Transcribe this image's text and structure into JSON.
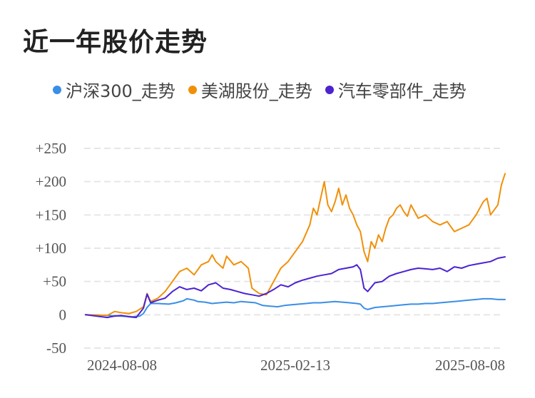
{
  "title": "近一年股价走势",
  "chart_data": {
    "type": "line",
    "title": "近一年股价走势",
    "xlabel": "",
    "ylabel": "",
    "x_tick_labels": [
      "2024-08-08",
      "2025-02-13",
      "2025-08-08"
    ],
    "y_ticks": [
      {
        "value": 250,
        "label": "+250"
      },
      {
        "value": 200,
        "label": "+200"
      },
      {
        "value": 150,
        "label": "+150"
      },
      {
        "value": 100,
        "label": "+100"
      },
      {
        "value": 50,
        "label": "+50"
      },
      {
        "value": 0,
        "label": "0"
      },
      {
        "value": -50,
        "label": "-50"
      }
    ],
    "ylim": [
      -50,
      250
    ],
    "grid": true,
    "legend_position": "top",
    "series": [
      {
        "name": "沪深300_走势",
        "color": "#3a8ee6",
        "points": [
          [
            0,
            0
          ],
          [
            6,
            -1
          ],
          [
            10,
            -2
          ],
          [
            13,
            -3
          ],
          [
            15,
            -2
          ],
          [
            16,
            2
          ],
          [
            17,
            11
          ],
          [
            18,
            17
          ],
          [
            20,
            17
          ],
          [
            23,
            16
          ],
          [
            25,
            18
          ],
          [
            27,
            21
          ],
          [
            28,
            24
          ],
          [
            30,
            22
          ],
          [
            31,
            20
          ],
          [
            33,
            19
          ],
          [
            35,
            17
          ],
          [
            37,
            18
          ],
          [
            39,
            19
          ],
          [
            41,
            18
          ],
          [
            43,
            20
          ],
          [
            45,
            19
          ],
          [
            47,
            18
          ],
          [
            49,
            14
          ],
          [
            51,
            13
          ],
          [
            53,
            12
          ],
          [
            55,
            14
          ],
          [
            57,
            15
          ],
          [
            59,
            16
          ],
          [
            61,
            17
          ],
          [
            63,
            18
          ],
          [
            65,
            18
          ],
          [
            67,
            19
          ],
          [
            69,
            20
          ],
          [
            71,
            19
          ],
          [
            73,
            18
          ],
          [
            75,
            17
          ],
          [
            76,
            16
          ],
          [
            77,
            10
          ],
          [
            78,
            8
          ],
          [
            80,
            11
          ],
          [
            82,
            12
          ],
          [
            84,
            13
          ],
          [
            86,
            14
          ],
          [
            88,
            15
          ],
          [
            90,
            16
          ],
          [
            92,
            16
          ],
          [
            94,
            17
          ],
          [
            96,
            17
          ],
          [
            98,
            18
          ],
          [
            100,
            19
          ],
          [
            102,
            20
          ],
          [
            104,
            21
          ],
          [
            106,
            22
          ],
          [
            108,
            23
          ],
          [
            110,
            24
          ],
          [
            112,
            24
          ],
          [
            114,
            23
          ],
          [
            116,
            23
          ]
        ]
      },
      {
        "name": "美湖股份_走势",
        "color": "#f0900a",
        "points": [
          [
            0,
            0
          ],
          [
            6,
            -1
          ],
          [
            7,
            2
          ],
          [
            8,
            5
          ],
          [
            10,
            3
          ],
          [
            12,
            2
          ],
          [
            14,
            5
          ],
          [
            16,
            12
          ],
          [
            17,
            32
          ],
          [
            18,
            20
          ],
          [
            20,
            25
          ],
          [
            22,
            35
          ],
          [
            24,
            50
          ],
          [
            26,
            65
          ],
          [
            28,
            70
          ],
          [
            30,
            60
          ],
          [
            32,
            75
          ],
          [
            34,
            80
          ],
          [
            35,
            90
          ],
          [
            36,
            80
          ],
          [
            38,
            70
          ],
          [
            39,
            88
          ],
          [
            41,
            75
          ],
          [
            43,
            80
          ],
          [
            45,
            70
          ],
          [
            46,
            40
          ],
          [
            48,
            32
          ],
          [
            50,
            30
          ],
          [
            52,
            50
          ],
          [
            54,
            70
          ],
          [
            56,
            80
          ],
          [
            58,
            95
          ],
          [
            60,
            110
          ],
          [
            62,
            135
          ],
          [
            63,
            160
          ],
          [
            64,
            150
          ],
          [
            65,
            175
          ],
          [
            66,
            200
          ],
          [
            67,
            165
          ],
          [
            68,
            155
          ],
          [
            69,
            170
          ],
          [
            70,
            190
          ],
          [
            71,
            165
          ],
          [
            72,
            180
          ],
          [
            73,
            160
          ],
          [
            74,
            150
          ],
          [
            75,
            135
          ],
          [
            76,
            125
          ],
          [
            77,
            95
          ],
          [
            78,
            80
          ],
          [
            79,
            110
          ],
          [
            80,
            100
          ],
          [
            81,
            120
          ],
          [
            82,
            110
          ],
          [
            83,
            130
          ],
          [
            84,
            145
          ],
          [
            85,
            150
          ],
          [
            86,
            160
          ],
          [
            87,
            165
          ],
          [
            88,
            155
          ],
          [
            89,
            148
          ],
          [
            90,
            165
          ],
          [
            92,
            145
          ],
          [
            94,
            150
          ],
          [
            96,
            140
          ],
          [
            98,
            135
          ],
          [
            100,
            140
          ],
          [
            102,
            125
          ],
          [
            104,
            130
          ],
          [
            106,
            135
          ],
          [
            108,
            150
          ],
          [
            110,
            170
          ],
          [
            111,
            175
          ],
          [
            112,
            150
          ],
          [
            114,
            165
          ],
          [
            115,
            195
          ],
          [
            116,
            212
          ]
        ]
      },
      {
        "name": "汽车零部件_走势",
        "color": "#4b23d1",
        "points": [
          [
            0,
            0
          ],
          [
            6,
            -4
          ],
          [
            8,
            -2
          ],
          [
            10,
            -1
          ],
          [
            12,
            -3
          ],
          [
            14,
            -4
          ],
          [
            16,
            10
          ],
          [
            17,
            31
          ],
          [
            18,
            18
          ],
          [
            20,
            22
          ],
          [
            22,
            25
          ],
          [
            24,
            35
          ],
          [
            26,
            42
          ],
          [
            28,
            38
          ],
          [
            30,
            40
          ],
          [
            32,
            36
          ],
          [
            34,
            45
          ],
          [
            36,
            48
          ],
          [
            38,
            40
          ],
          [
            40,
            38
          ],
          [
            42,
            35
          ],
          [
            44,
            32
          ],
          [
            46,
            30
          ],
          [
            48,
            28
          ],
          [
            50,
            32
          ],
          [
            52,
            38
          ],
          [
            54,
            45
          ],
          [
            56,
            42
          ],
          [
            58,
            48
          ],
          [
            60,
            52
          ],
          [
            62,
            55
          ],
          [
            64,
            58
          ],
          [
            66,
            60
          ],
          [
            68,
            62
          ],
          [
            70,
            68
          ],
          [
            72,
            70
          ],
          [
            74,
            72
          ],
          [
            75,
            75
          ],
          [
            76,
            68
          ],
          [
            77,
            40
          ],
          [
            78,
            35
          ],
          [
            80,
            48
          ],
          [
            82,
            50
          ],
          [
            84,
            58
          ],
          [
            86,
            62
          ],
          [
            88,
            65
          ],
          [
            90,
            68
          ],
          [
            92,
            70
          ],
          [
            94,
            69
          ],
          [
            96,
            68
          ],
          [
            98,
            70
          ],
          [
            100,
            65
          ],
          [
            102,
            72
          ],
          [
            104,
            70
          ],
          [
            106,
            74
          ],
          [
            108,
            76
          ],
          [
            110,
            78
          ],
          [
            112,
            80
          ],
          [
            114,
            85
          ],
          [
            116,
            87
          ]
        ]
      }
    ]
  }
}
